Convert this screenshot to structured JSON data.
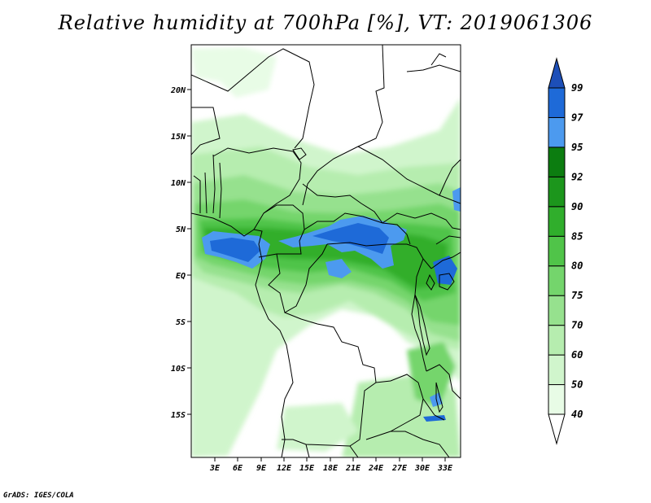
{
  "title": "Relative humidity at 700hPa [%], VT: 2019061306",
  "footer": "GrADS: IGES/COLA",
  "latitude_labels": [
    "20N",
    "15N",
    "10N",
    "5N",
    "EQ",
    "5S",
    "10S",
    "15S"
  ],
  "longitude_labels": [
    "3E",
    "6E",
    "9E",
    "12E",
    "15E",
    "18E",
    "21E",
    "24E",
    "27E",
    "30E",
    "33E"
  ],
  "colorbar": {
    "levels": [
      "40",
      "50",
      "60",
      "70",
      "75",
      "80",
      "85",
      "90",
      "92",
      "95",
      "97",
      "99"
    ],
    "colors": [
      "#ffffff",
      "#e8fce6",
      "#d0f5cc",
      "#b6edaf",
      "#96e18e",
      "#74d56c",
      "#50c449",
      "#30ae2c",
      "#1c961c",
      "#0c7d10",
      "#4c9aef",
      "#1e6ad8",
      "#1d4fb8"
    ]
  },
  "colors": {
    "wettest": "#1e6ad8",
    "very_wet": "#4c9aef",
    "wet_green": "#50c449",
    "moist_green": "#96e18e",
    "light_green": "#d0f5cc"
  }
}
